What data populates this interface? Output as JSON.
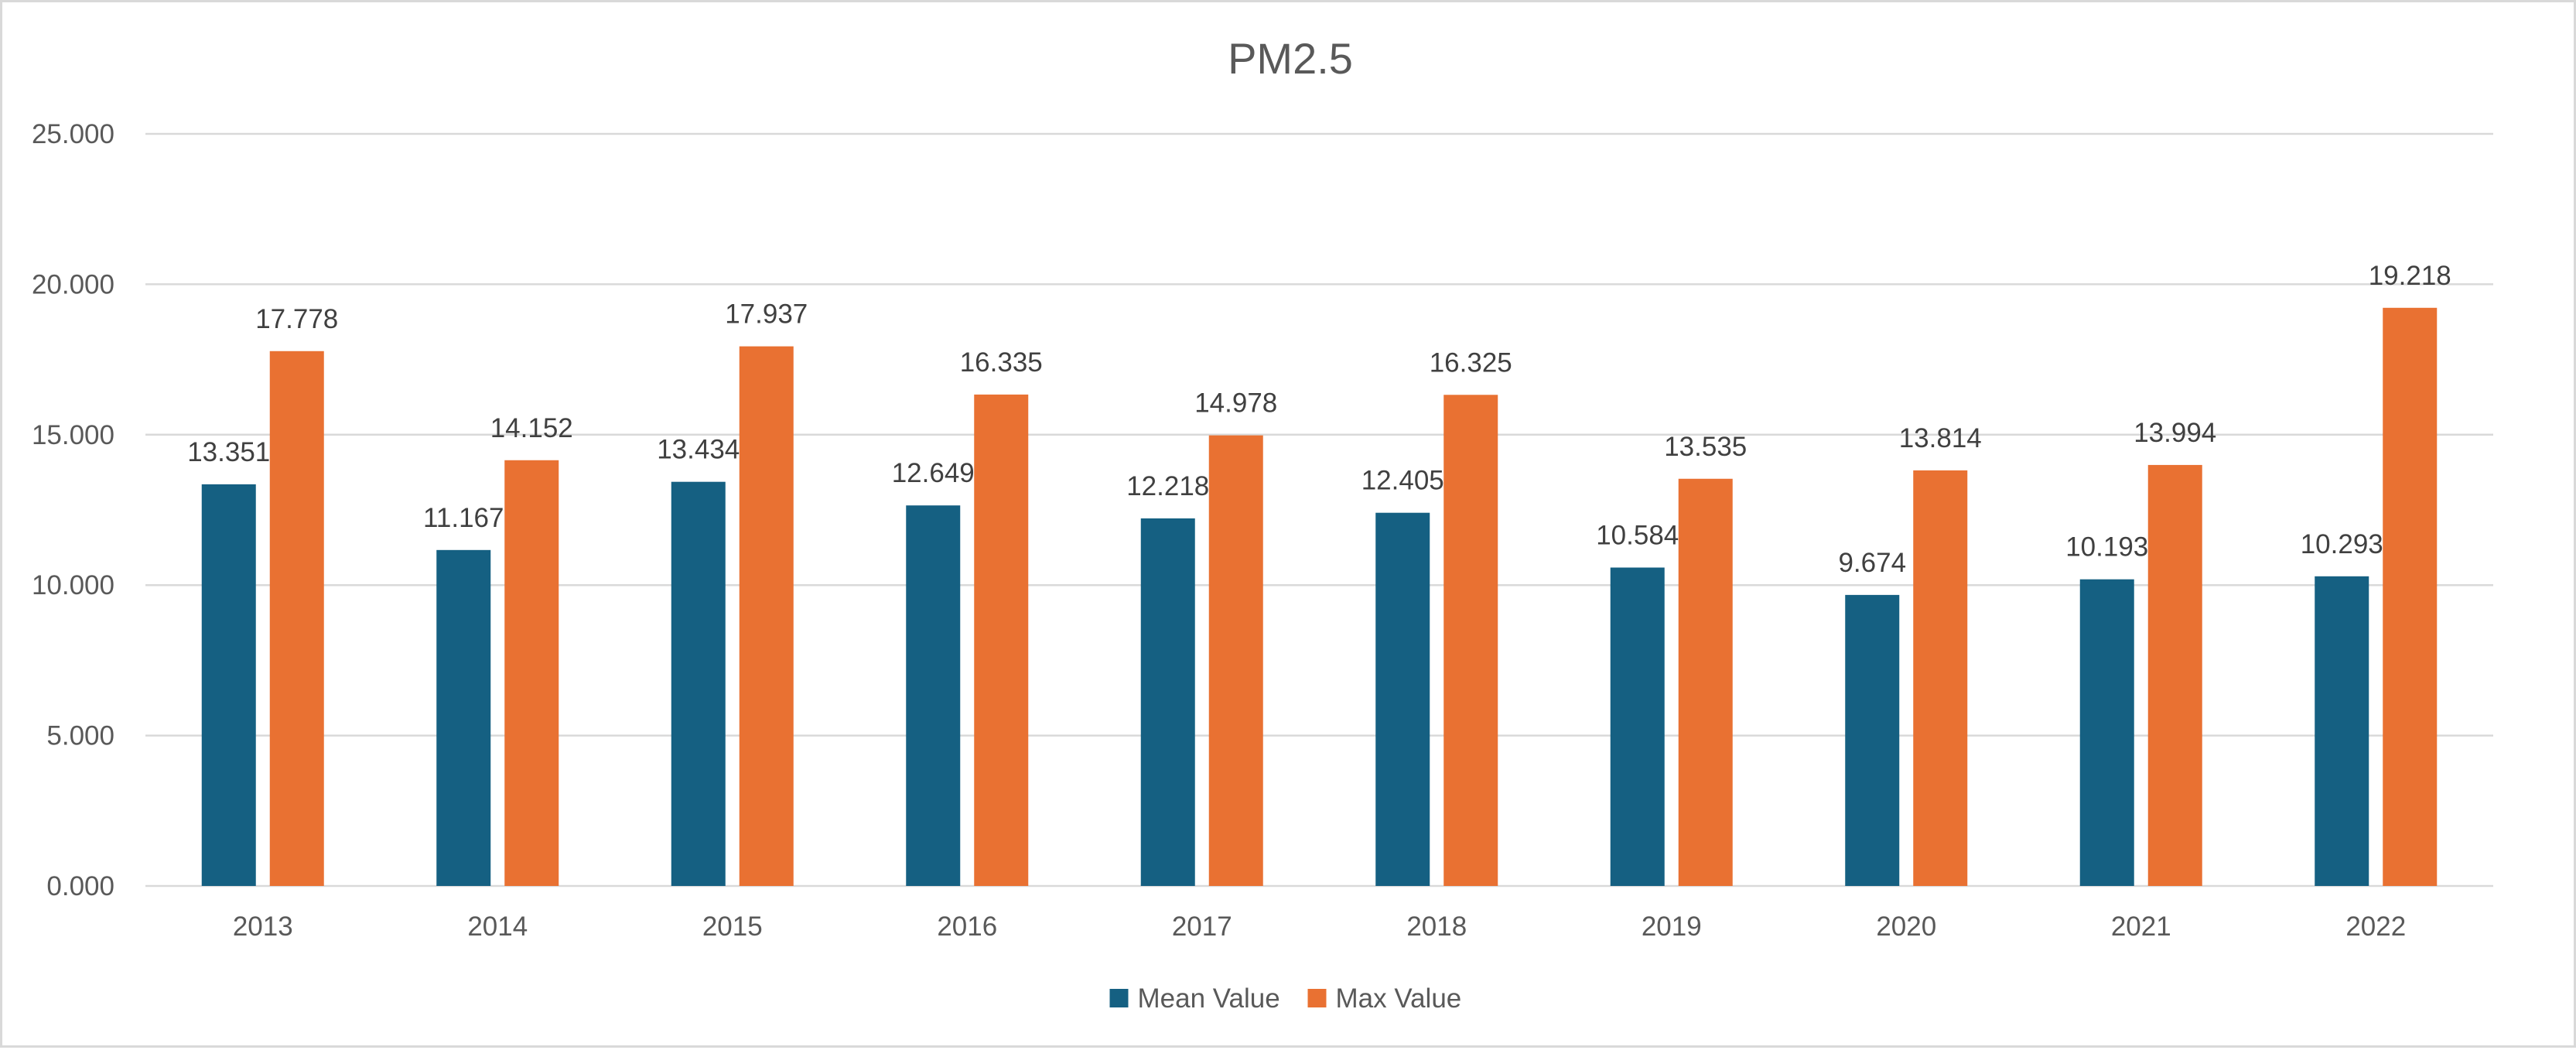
{
  "chart_data": {
    "type": "bar",
    "title": "PM2.5",
    "xlabel": "",
    "ylabel": "",
    "categories": [
      "2013",
      "2014",
      "2015",
      "2016",
      "2017",
      "2018",
      "2019",
      "2020",
      "2021",
      "2022"
    ],
    "series": [
      {
        "name": "Mean Value",
        "color": "#156082",
        "values": [
          13.351,
          11.167,
          13.434,
          12.649,
          12.218,
          12.405,
          10.584,
          9.674,
          10.193,
          10.293
        ],
        "labels": [
          "13.351",
          "11.167",
          "13.434",
          "12.649",
          "12.218",
          "12.405",
          "10.584",
          "9.674",
          "10.193",
          "10.293"
        ]
      },
      {
        "name": "Max Value",
        "color": "#E97132",
        "values": [
          17.778,
          14.152,
          17.937,
          16.335,
          14.978,
          16.325,
          13.535,
          13.814,
          13.994,
          19.218
        ],
        "labels": [
          "17.778",
          "14.152",
          "17.937",
          "16.335",
          "14.978",
          "16.325",
          "13.535",
          "13.814",
          "13.994",
          "19.218"
        ]
      }
    ],
    "ylim": [
      0,
      25
    ],
    "yticks": [
      0,
      5,
      10,
      15,
      20,
      25
    ],
    "ytick_labels": [
      "0.000",
      "5.000",
      "10.000",
      "15.000",
      "20.000",
      "25.000"
    ],
    "grid": true,
    "legend": "bottom"
  }
}
